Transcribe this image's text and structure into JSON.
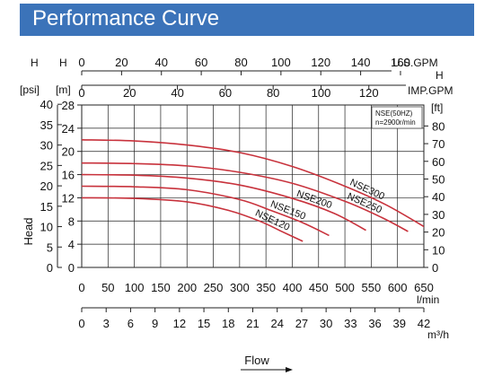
{
  "header": {
    "title": "Performance Curve"
  },
  "colors": {
    "banner": "#3b73b9",
    "curve": "#c8323c",
    "grid": "#222222"
  },
  "chart_data": {
    "type": "line",
    "ylabel": "Head",
    "xlabel": "Flow",
    "note": [
      "NSE(50HZ)",
      "n=2900r/min"
    ],
    "grid": true,
    "axes": {
      "x_lmin": {
        "unit": "l/min",
        "range": [
          0,
          650
        ],
        "ticks": [
          "0",
          "50",
          "100",
          "150",
          "200",
          "250",
          "300",
          "350",
          "400",
          "450",
          "500",
          "550",
          "600",
          "650"
        ]
      },
      "x_m3h": {
        "unit": "m³/h",
        "range": [
          0,
          42
        ],
        "ticks": [
          "0",
          "3",
          "6",
          "9",
          "12",
          "15",
          "18",
          "21",
          "24",
          "27",
          "30",
          "33",
          "36",
          "39",
          "42"
        ]
      },
      "x_usgpm": {
        "label_left": "H",
        "unit": "U.S.GPM",
        "unit_right": "H",
        "range": [
          0,
          170
        ],
        "ticks": [
          "0",
          "20",
          "40",
          "60",
          "80",
          "100",
          "120",
          "140",
          "160"
        ]
      },
      "x_impgpm": {
        "unit": "IMP.GPM",
        "range": [
          0,
          140
        ],
        "ticks": [
          "0",
          "20",
          "40",
          "60",
          "80",
          "100",
          "120"
        ]
      },
      "y_psi": {
        "label": "H",
        "unit": "[psi]",
        "range": [
          0,
          40
        ],
        "ticks": [
          "0",
          "5",
          "10",
          "15",
          "20",
          "25",
          "30",
          "35",
          "40"
        ]
      },
      "y_m": {
        "label": "H",
        "unit": "[m]",
        "range": [
          0,
          28
        ],
        "ticks": [
          "0",
          "4",
          "8",
          "12",
          "16",
          "20",
          "24",
          "28"
        ]
      },
      "y_ft": {
        "unit": "[ft]",
        "range": [
          0,
          90
        ],
        "ticks": [
          "0",
          "10",
          "20",
          "30",
          "40",
          "50",
          "60",
          "70",
          "80"
        ]
      }
    },
    "series": [
      {
        "name": "NSE120",
        "x": [
          0,
          100,
          200,
          280,
          340,
          380,
          420
        ],
        "y": [
          12.0,
          11.9,
          11.3,
          9.8,
          7.9,
          6.2,
          4.5
        ]
      },
      {
        "name": "NSE150",
        "x": [
          0,
          100,
          200,
          300,
          360,
          420,
          470
        ],
        "y": [
          14.0,
          13.9,
          13.4,
          11.7,
          9.8,
          7.7,
          5.5
        ]
      },
      {
        "name": "NSE200",
        "x": [
          0,
          100,
          200,
          300,
          400,
          480,
          540
        ],
        "y": [
          16.0,
          15.9,
          15.4,
          14.2,
          11.9,
          9.3,
          6.4
        ]
      },
      {
        "name": "NSE250",
        "x": [
          0,
          100,
          200,
          300,
          400,
          500,
          570,
          620
        ],
        "y": [
          18.0,
          17.9,
          17.5,
          16.4,
          14.5,
          11.4,
          8.6,
          6.2
        ]
      },
      {
        "name": "NSE300",
        "x": [
          0,
          100,
          200,
          300,
          400,
          500,
          580,
          660
        ],
        "y": [
          22.0,
          21.8,
          21.1,
          19.8,
          17.4,
          14.0,
          10.7,
          6.5
        ]
      }
    ]
  },
  "footer": {
    "flow_label": "Flow"
  }
}
